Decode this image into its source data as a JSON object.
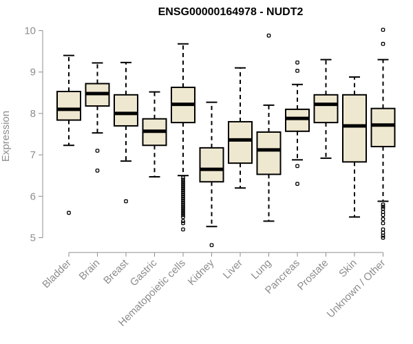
{
  "chart_data": {
    "type": "boxplot",
    "title": "ENSG00000164978 - NUDT2",
    "xlabel": "",
    "ylabel": "Expression",
    "ylim": [
      4.75,
      10.05
    ],
    "yticks": [
      5,
      6,
      7,
      8,
      9,
      10
    ],
    "grid": false,
    "legend": "none",
    "box_color": "#efe8d0",
    "categories": [
      "Bladder",
      "Brain",
      "Breast",
      "Gastric",
      "Hematopoietic cells",
      "Kidney",
      "Liver",
      "Lung",
      "Pancreas",
      "Prostate",
      "Skin",
      "Unknown / Other"
    ],
    "boxes": [
      {
        "q1": 7.84,
        "median": 8.1,
        "q3": 8.53,
        "whisker_low": 7.23,
        "whisker_high": 9.4,
        "outliers": [
          5.6
        ]
      },
      {
        "q1": 8.18,
        "median": 8.48,
        "q3": 8.72,
        "whisker_low": 7.53,
        "whisker_high": 9.22,
        "outliers": [
          7.1,
          6.62
        ]
      },
      {
        "q1": 7.7,
        "median": 8.0,
        "q3": 8.45,
        "whisker_low": 6.85,
        "whisker_high": 9.23,
        "outliers": [
          5.88
        ]
      },
      {
        "q1": 7.23,
        "median": 7.57,
        "q3": 7.87,
        "whisker_low": 6.47,
        "whisker_high": 8.52,
        "outliers": []
      },
      {
        "q1": 7.78,
        "median": 8.22,
        "q3": 8.63,
        "whisker_low": 6.5,
        "whisker_high": 9.68,
        "outliers": [
          6.45,
          6.4,
          6.35,
          6.3,
          6.25,
          6.2,
          6.15,
          6.1,
          6.05,
          6.0,
          5.95,
          5.9,
          5.85,
          5.8,
          5.75,
          5.7,
          5.65,
          5.6,
          5.55,
          5.5,
          5.4,
          5.35,
          5.2
        ]
      },
      {
        "q1": 6.35,
        "median": 6.65,
        "q3": 7.17,
        "whisker_low": 5.27,
        "whisker_high": 8.27,
        "outliers": [
          4.82
        ]
      },
      {
        "q1": 6.8,
        "median": 7.36,
        "q3": 7.8,
        "whisker_low": 6.2,
        "whisker_high": 9.1,
        "outliers": []
      },
      {
        "q1": 6.53,
        "median": 7.12,
        "q3": 7.55,
        "whisker_low": 5.4,
        "whisker_high": 8.2,
        "outliers": [
          9.88
        ]
      },
      {
        "q1": 7.57,
        "median": 7.88,
        "q3": 8.1,
        "whisker_low": 6.88,
        "whisker_high": 8.7,
        "outliers": [
          9.23,
          9.03,
          6.73,
          6.3
        ]
      },
      {
        "q1": 7.78,
        "median": 8.22,
        "q3": 8.45,
        "whisker_low": 6.92,
        "whisker_high": 9.3,
        "outliers": []
      },
      {
        "q1": 6.83,
        "median": 7.7,
        "q3": 8.45,
        "whisker_low": 5.5,
        "whisker_high": 8.88,
        "outliers": []
      },
      {
        "q1": 7.2,
        "median": 7.72,
        "q3": 8.12,
        "whisker_low": 5.88,
        "whisker_high": 9.3,
        "outliers": [
          10.02,
          9.68,
          5.8,
          5.75,
          5.7,
          5.62,
          5.55,
          5.45,
          5.35,
          5.2,
          5.12,
          5.05,
          5.0
        ]
      }
    ]
  }
}
